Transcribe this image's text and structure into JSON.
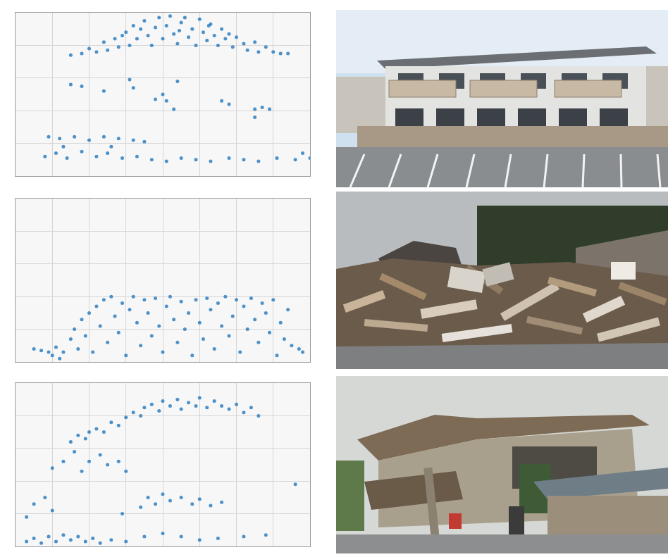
{
  "chart_data": [
    {
      "type": "scatter",
      "color": "#2f7fbf",
      "marker": "circle",
      "grid": true,
      "tick_labels": false,
      "xlim": [
        0,
        8
      ],
      "ylim": [
        0,
        5
      ],
      "xticks": [
        0,
        1,
        2,
        3,
        4,
        5,
        6,
        7,
        8
      ],
      "yticks": [
        0,
        1,
        2,
        3,
        4,
        5
      ],
      "x": [
        1.5,
        1.8,
        2.0,
        2.2,
        2.4,
        2.5,
        2.7,
        2.8,
        3.0,
        3.1,
        3.2,
        3.3,
        3.5,
        3.6,
        3.7,
        3.8,
        3.9,
        4.0,
        4.1,
        4.2,
        4.3,
        4.4,
        4.5,
        4.6,
        4.7,
        4.8,
        4.9,
        5.0,
        5.1,
        5.2,
        5.3,
        5.4,
        5.5,
        5.6,
        5.7,
        5.8,
        5.9,
        6.0,
        6.2,
        6.3,
        6.5,
        6.6,
        6.8,
        7.0,
        7.2,
        7.4,
        2.9,
        3.4,
        4.45,
        5.25,
        1.5,
        1.8,
        2.4,
        3.1,
        3.2,
        3.8,
        4.0,
        4.1,
        4.4,
        4.3,
        5.6,
        5.8,
        6.5,
        6.7,
        6.9,
        6.5,
        0.9,
        1.2,
        1.6,
        2.0,
        2.4,
        2.8,
        3.2,
        3.5,
        0.8,
        1.1,
        1.4,
        1.8,
        2.2,
        2.5,
        2.9,
        3.3,
        3.7,
        4.1,
        4.5,
        4.9,
        5.3,
        5.8,
        6.2,
        6.6,
        7.1,
        7.6,
        7.8,
        8.0,
        1.3,
        2.6
      ],
      "values": [
        3.7,
        3.75,
        3.9,
        3.8,
        4.1,
        3.85,
        4.2,
        3.95,
        4.4,
        4.0,
        4.6,
        4.2,
        4.75,
        4.3,
        4.0,
        4.55,
        4.85,
        4.2,
        4.6,
        4.9,
        4.35,
        4.05,
        4.7,
        4.85,
        4.25,
        4.5,
        4.0,
        4.8,
        4.4,
        4.15,
        4.65,
        4.3,
        4.0,
        4.5,
        4.2,
        4.35,
        3.95,
        4.25,
        4.05,
        3.85,
        4.1,
        3.8,
        3.95,
        3.8,
        3.75,
        3.75,
        4.3,
        4.5,
        4.45,
        4.6,
        2.8,
        2.75,
        2.6,
        2.95,
        2.7,
        2.35,
        2.5,
        2.3,
        2.9,
        2.05,
        2.3,
        2.2,
        2.05,
        2.1,
        2.05,
        1.8,
        1.2,
        1.15,
        1.2,
        1.1,
        1.2,
        1.15,
        1.1,
        1.05,
        0.6,
        0.7,
        0.55,
        0.75,
        0.6,
        0.7,
        0.55,
        0.6,
        0.5,
        0.45,
        0.55,
        0.5,
        0.45,
        0.55,
        0.5,
        0.45,
        0.55,
        0.5,
        0.7,
        0.55,
        0.9,
        0.9
      ]
    },
    {
      "type": "scatter",
      "color": "#2f7fbf",
      "marker": "circle",
      "grid": true,
      "tick_labels": false,
      "xlim": [
        0,
        8
      ],
      "ylim": [
        0,
        5
      ],
      "xticks": [
        0,
        1,
        2,
        3,
        4,
        5,
        6,
        7,
        8
      ],
      "yticks": [
        0,
        1,
        2,
        3,
        4,
        5
      ],
      "x": [
        0.5,
        0.7,
        0.9,
        1.0,
        1.1,
        1.2,
        1.3,
        1.5,
        1.6,
        1.7,
        1.8,
        1.9,
        2.0,
        2.1,
        2.2,
        2.3,
        2.4,
        2.5,
        2.6,
        2.7,
        2.8,
        2.9,
        3.0,
        3.1,
        3.2,
        3.3,
        3.4,
        3.5,
        3.6,
        3.7,
        3.8,
        3.9,
        4.0,
        4.1,
        4.2,
        4.3,
        4.4,
        4.5,
        4.6,
        4.7,
        4.8,
        4.9,
        5.0,
        5.1,
        5.2,
        5.3,
        5.4,
        5.5,
        5.6,
        5.7,
        5.8,
        5.9,
        6.0,
        6.1,
        6.2,
        6.3,
        6.4,
        6.5,
        6.6,
        6.7,
        6.8,
        6.9,
        7.0,
        7.1,
        7.2,
        7.3,
        7.4,
        7.5,
        7.7,
        7.8
      ],
      "values": [
        0.4,
        0.35,
        0.3,
        0.2,
        0.45,
        0.1,
        0.3,
        0.7,
        1.0,
        0.4,
        1.3,
        0.8,
        1.5,
        0.3,
        1.7,
        1.1,
        1.9,
        0.6,
        2.0,
        1.4,
        0.9,
        1.8,
        0.2,
        1.6,
        2.0,
        1.2,
        0.5,
        1.9,
        1.5,
        0.8,
        1.95,
        1.1,
        0.3,
        1.7,
        2.0,
        1.3,
        0.6,
        1.85,
        1.0,
        1.5,
        0.2,
        1.9,
        1.2,
        0.7,
        1.95,
        1.6,
        0.4,
        1.8,
        1.1,
        2.0,
        0.8,
        1.4,
        1.9,
        0.3,
        1.7,
        1.0,
        1.95,
        1.3,
        0.6,
        1.8,
        1.5,
        0.9,
        1.9,
        0.2,
        1.2,
        0.7,
        1.6,
        0.5,
        0.4,
        0.3
      ]
    },
    {
      "type": "scatter",
      "color": "#2f7fbf",
      "marker": "circle",
      "grid": true,
      "tick_labels": false,
      "xlim": [
        0,
        8
      ],
      "ylim": [
        0,
        5
      ],
      "xticks": [
        0,
        1,
        2,
        3,
        4,
        5,
        6,
        7,
        8
      ],
      "yticks": [
        0,
        1,
        2,
        3,
        4,
        5
      ],
      "x": [
        1.5,
        1.7,
        1.9,
        2.0,
        2.2,
        2.4,
        2.6,
        2.8,
        3.0,
        3.2,
        3.4,
        3.5,
        3.7,
        3.9,
        4.0,
        4.2,
        4.4,
        4.5,
        4.7,
        4.9,
        5.0,
        5.2,
        5.4,
        5.6,
        5.8,
        6.0,
        6.2,
        6.4,
        6.6,
        1.0,
        1.3,
        1.6,
        2.0,
        2.3,
        2.5,
        2.8,
        3.0,
        1.8,
        0.5,
        0.3,
        1.0,
        0.8,
        3.6,
        3.8,
        4.0,
        4.2,
        4.5,
        4.8,
        5.0,
        5.3,
        5.6,
        3.4,
        2.9,
        7.6,
        0.3,
        0.5,
        0.7,
        0.9,
        1.1,
        1.3,
        1.5,
        1.7,
        1.9,
        2.1,
        2.3,
        2.6,
        3.0,
        3.5,
        4.0,
        4.5,
        5.0,
        5.5,
        6.2,
        6.8
      ],
      "values": [
        3.2,
        3.4,
        3.3,
        3.5,
        3.6,
        3.5,
        3.8,
        3.7,
        3.95,
        4.1,
        4.0,
        4.25,
        4.35,
        4.15,
        4.45,
        4.3,
        4.5,
        4.2,
        4.4,
        4.3,
        4.55,
        4.25,
        4.45,
        4.3,
        4.2,
        4.35,
        4.1,
        4.25,
        4.0,
        2.4,
        2.6,
        2.9,
        2.6,
        2.8,
        2.5,
        2.6,
        2.3,
        2.3,
        1.3,
        0.9,
        1.1,
        1.5,
        1.5,
        1.3,
        1.6,
        1.4,
        1.5,
        1.3,
        1.45,
        1.25,
        1.35,
        1.2,
        1.0,
        1.9,
        0.15,
        0.25,
        0.1,
        0.3,
        0.15,
        0.35,
        0.2,
        0.3,
        0.15,
        0.25,
        0.1,
        0.2,
        0.15,
        0.3,
        0.4,
        0.3,
        0.2,
        0.25,
        0.3,
        0.35
      ]
    }
  ]
}
